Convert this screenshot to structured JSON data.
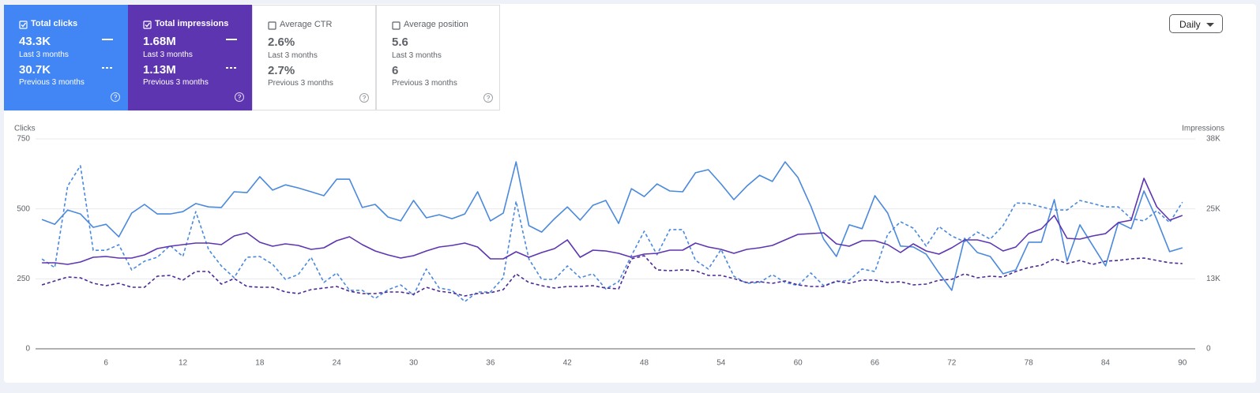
{
  "metrics": [
    {
      "label": "Total clicks",
      "checked": true,
      "color": "#4285f4",
      "current": "43.3K",
      "current_period": "Last 3 months",
      "previous": "30.7K",
      "previous_period": "Previous 3 months"
    },
    {
      "label": "Total impressions",
      "checked": true,
      "color": "#5e35b1",
      "current": "1.68M",
      "current_period": "Last 3 months",
      "previous": "1.13M",
      "previous_period": "Previous 3 months"
    },
    {
      "label": "Average CTR",
      "checked": false,
      "current": "2.6%",
      "current_period": "Last 3 months",
      "previous": "2.7%",
      "previous_period": "Previous 3 months"
    },
    {
      "label": "Average position",
      "checked": false,
      "current": "5.6",
      "current_period": "Last 3 months",
      "previous": "6",
      "previous_period": "Previous 3 months"
    }
  ],
  "granularity": "Daily",
  "chart_data": {
    "type": "line",
    "y_label": "Clicks",
    "y2_label": "Impressions",
    "x": [
      1,
      2,
      3,
      4,
      5,
      6,
      7,
      8,
      9,
      10,
      11,
      12,
      13,
      14,
      15,
      16,
      17,
      18,
      19,
      20,
      21,
      22,
      23,
      24,
      25,
      26,
      27,
      28,
      29,
      30,
      31,
      32,
      33,
      34,
      35,
      36,
      37,
      38,
      39,
      40,
      41,
      42,
      43,
      44,
      45,
      46,
      47,
      48,
      49,
      50,
      51,
      52,
      53,
      54,
      55,
      56,
      57,
      58,
      59,
      60,
      61,
      62,
      63,
      64,
      65,
      66,
      67,
      68,
      69,
      70,
      71,
      72,
      73,
      74,
      75,
      76,
      77,
      78,
      79,
      80,
      81,
      82,
      83,
      84,
      85,
      86,
      87,
      88,
      89,
      90
    ],
    "xlim": [
      0.5,
      91
    ],
    "xticks": [
      6,
      12,
      18,
      24,
      30,
      36,
      42,
      48,
      54,
      60,
      66,
      72,
      78,
      84,
      90
    ],
    "ylim": [
      0,
      750
    ],
    "yticks": [
      0,
      250,
      500,
      750
    ],
    "y2lim": [
      0,
      38000
    ],
    "y2ticks": [
      0,
      {
        "value": 12667,
        "label": "13K"
      },
      {
        "value": 25333,
        "label": "25K"
      },
      {
        "value": 38000,
        "label": "38K"
      }
    ],
    "grid": true,
    "series": [
      {
        "color": "#4a89dc",
        "dashed": true,
        "values": [
          321,
          290,
          581,
          654,
          352,
          352,
          372,
          282,
          313,
          327,
          369,
          330,
          490,
          355,
          296,
          254,
          327,
          330,
          302,
          248,
          265,
          327,
          237,
          271,
          209,
          209,
          180,
          211,
          228,
          192,
          285,
          217,
          209,
          169,
          203,
          203,
          254,
          527,
          321,
          248,
          248,
          296,
          254,
          268,
          214,
          240,
          333,
          420,
          336,
          426,
          426,
          316,
          285,
          355,
          259,
          234,
          237,
          265,
          237,
          226,
          271,
          226,
          240,
          245,
          285,
          276,
          409,
          454,
          431,
          367,
          437,
          403,
          383,
          417,
          392,
          440,
          521,
          519,
          507,
          496,
          496,
          530,
          519,
          507,
          507,
          465,
          457,
          493,
          451,
          524
        ]
      },
      {
        "color": "#4b2a94",
        "dashed": true,
        "axis": "y2",
        "values": [
          11571,
          12286,
          13000,
          12857,
          11857,
          11429,
          11857,
          11143,
          11143,
          13143,
          13286,
          12429,
          14000,
          14000,
          11714,
          12714,
          11286,
          11143,
          11143,
          10286,
          10000,
          10714,
          11000,
          11286,
          10429,
          10000,
          10000,
          10286,
          10286,
          9857,
          11143,
          10429,
          10143,
          9571,
          10000,
          10143,
          10714,
          13571,
          12000,
          11429,
          11000,
          11286,
          11286,
          11429,
          11000,
          10857,
          16286,
          16857,
          14286,
          14143,
          14286,
          14143,
          13286,
          13286,
          12714,
          12000,
          12143,
          11857,
          12286,
          11571,
          11286,
          11286,
          12286,
          11857,
          12429,
          12429,
          12000,
          12143,
          11571,
          11714,
          12429,
          12571,
          13571,
          12857,
          13143,
          13000,
          14000,
          14714,
          15143,
          16286,
          15429,
          16000,
          15286,
          15857,
          16000,
          16286,
          16429,
          16000,
          15571,
          15429
        ]
      },
      {
        "color": "#4a89dc",
        "dashed": false,
        "values": [
          462,
          445,
          496,
          482,
          434,
          445,
          400,
          485,
          516,
          482,
          482,
          490,
          519,
          507,
          505,
          561,
          558,
          615,
          567,
          586,
          575,
          561,
          547,
          606,
          606,
          505,
          516,
          471,
          457,
          530,
          468,
          479,
          465,
          482,
          561,
          457,
          485,
          668,
          440,
          417,
          465,
          507,
          460,
          513,
          530,
          448,
          572,
          544,
          589,
          564,
          561,
          629,
          640,
          589,
          533,
          581,
          620,
          598,
          668,
          612,
          510,
          392,
          330,
          443,
          429,
          547,
          485,
          367,
          364,
          338,
          271,
          209,
          395,
          344,
          330,
          268,
          282,
          381,
          381,
          533,
          313,
          443,
          369,
          296,
          451,
          429,
          564,
          462,
          347,
          361
        ]
      },
      {
        "color": "#5e35b1",
        "dashed": false,
        "axis": "y2",
        "values": [
          15571,
          15571,
          15286,
          15714,
          16571,
          16714,
          16429,
          16429,
          17000,
          18143,
          18571,
          18857,
          19143,
          19143,
          18857,
          20429,
          21000,
          19286,
          18571,
          19000,
          18714,
          18000,
          18286,
          19571,
          20286,
          18857,
          17714,
          17000,
          16429,
          16857,
          17714,
          18429,
          18714,
          19143,
          18429,
          16286,
          16286,
          17571,
          16571,
          17429,
          18143,
          19714,
          16571,
          17857,
          17714,
          17286,
          16571,
          17143,
          17286,
          17857,
          17857,
          19143,
          18429,
          18000,
          17286,
          18000,
          18286,
          18714,
          19714,
          20714,
          20857,
          21000,
          19000,
          18571,
          19571,
          19571,
          18857,
          17429,
          19000,
          17714,
          17143,
          18286,
          19714,
          19714,
          19143,
          17714,
          18429,
          20857,
          21714,
          24143,
          20000,
          19857,
          20429,
          20857,
          22857,
          23286,
          30857,
          25714,
          23286,
          24143
        ]
      }
    ]
  }
}
